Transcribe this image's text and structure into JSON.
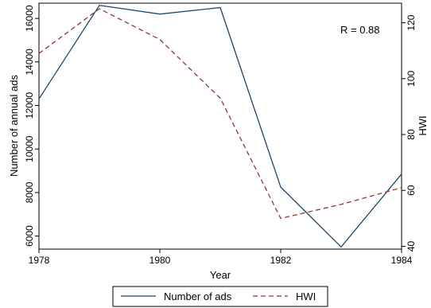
{
  "chart_data": {
    "type": "line",
    "x": [
      1978,
      1979,
      1980,
      1981,
      1982,
      1983,
      1984
    ],
    "xlabel": "Year",
    "xlim": [
      1978,
      1984
    ],
    "xticks": [
      1978,
      1980,
      1982,
      1984
    ],
    "y_left": {
      "label": "Number of annual ads",
      "lim": [
        5400,
        16700
      ],
      "ticks": [
        6000,
        8000,
        10000,
        12000,
        14000,
        16000
      ]
    },
    "y_right": {
      "label": "HWI",
      "lim": [
        39,
        127
      ],
      "ticks": [
        40,
        60,
        80,
        100,
        120
      ]
    },
    "series": [
      {
        "name": "Number of ads",
        "axis": "left",
        "color": "#1a476f",
        "dash": "solid",
        "values": [
          12300,
          16600,
          16200,
          16500,
          8250,
          5500,
          8850
        ]
      },
      {
        "name": "HWI",
        "axis": "right",
        "color": "#90353b",
        "dash": "dashed",
        "values": [
          109,
          125,
          114,
          93,
          50,
          55,
          61
        ]
      }
    ],
    "annotation": "R = 0.88",
    "legend_position": "bottom",
    "grid": false
  }
}
